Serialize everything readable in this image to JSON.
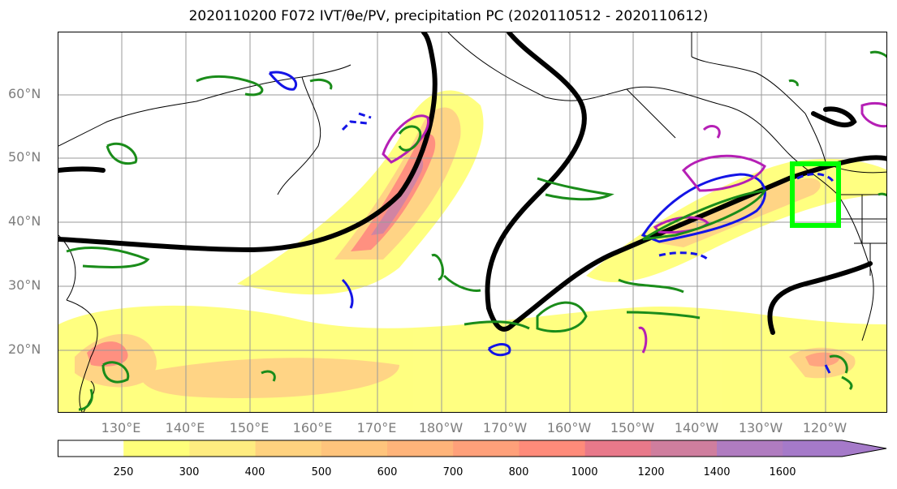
{
  "title": "2020110200 F072 IVT/θe/PV, precipitation PC (2020110512 - 2020110612)",
  "latitude_labels": [
    "60°N",
    "50°N",
    "40°N",
    "30°N",
    "20°N"
  ],
  "longitude_labels": [
    "130°E",
    "140°E",
    "150°E",
    "160°E",
    "170°E",
    "180°W",
    "170°W",
    "160°W",
    "150°W",
    "140°W",
    "130°W",
    "120°W"
  ],
  "colorbar": {
    "ticks": [
      "250",
      "300",
      "400",
      "500",
      "600",
      "700",
      "800",
      "1000",
      "1200",
      "1400",
      "1600"
    ],
    "colors": [
      "#ffffff",
      "#ffff7a",
      "#ffec80",
      "#ffd27f",
      "#ffc47c",
      "#ffb47a",
      "#ffa07a",
      "#ff8b7a",
      "#e8798a",
      "#cf7e9e",
      "#b07cc0",
      "#a57ac9"
    ]
  },
  "legend_colors": {
    "ivt_contour": "#000000",
    "theta_e": "#1414e6",
    "pv": "#b51fb5",
    "precip_pc": "#1a8c1a",
    "target_box": "#00ff00"
  }
}
